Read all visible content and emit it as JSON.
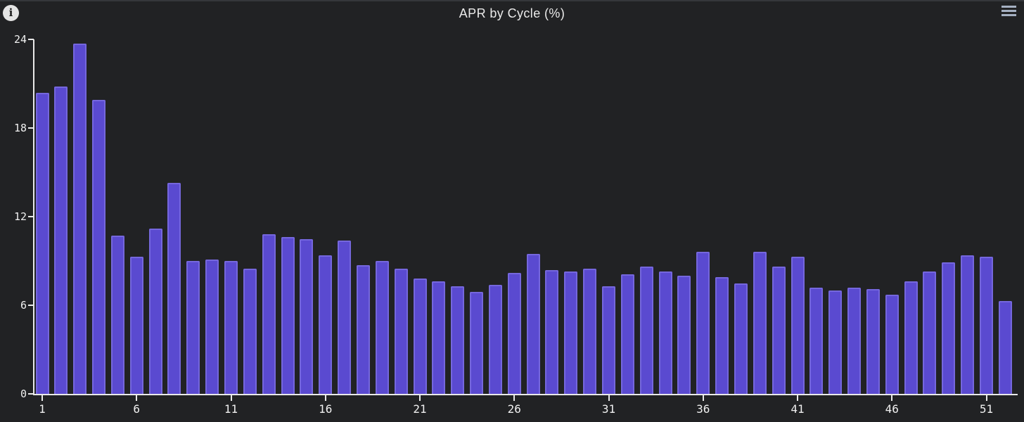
{
  "header": {
    "info_glyph": "i"
  },
  "colors": {
    "background": "#212224",
    "bar_fill": "#5a4ad0",
    "bar_border": "#7567dd",
    "axis": "#e9e9e9",
    "label": "#f0f0f0",
    "menu_icon": "#a5b0c2",
    "info_circle": "#e4e4e4"
  },
  "chart_data": {
    "type": "bar",
    "title": "APR by Cycle (%)",
    "xlabel": "",
    "ylabel": "",
    "ylim": [
      0,
      24
    ],
    "yticks": [
      0,
      6,
      12,
      18,
      24
    ],
    "xtick_labels": [
      1,
      6,
      11,
      16,
      21,
      26,
      31,
      36,
      41,
      46,
      51
    ],
    "categories": [
      1,
      2,
      3,
      4,
      5,
      6,
      7,
      8,
      9,
      10,
      11,
      12,
      13,
      14,
      15,
      16,
      17,
      18,
      19,
      20,
      21,
      22,
      23,
      24,
      25,
      26,
      27,
      28,
      29,
      30,
      31,
      32,
      33,
      34,
      35,
      36,
      37,
      38,
      39,
      40,
      41,
      42,
      43,
      44,
      45,
      46,
      47,
      48,
      49,
      50,
      51,
      52
    ],
    "values": [
      20.4,
      20.8,
      23.7,
      19.9,
      10.7,
      9.3,
      11.2,
      14.3,
      9.0,
      9.1,
      9.0,
      8.5,
      10.8,
      10.6,
      10.5,
      9.4,
      10.4,
      8.7,
      9.0,
      8.5,
      7.8,
      7.6,
      7.3,
      6.9,
      7.4,
      8.2,
      9.5,
      8.4,
      8.3,
      8.5,
      7.3,
      8.1,
      8.6,
      8.3,
      8.0,
      9.6,
      7.9,
      7.5,
      9.6,
      8.6,
      9.3,
      7.2,
      7.0,
      7.2,
      7.1,
      6.7,
      7.6,
      8.3,
      8.9,
      9.4,
      9.3,
      6.3
    ],
    "grid": false,
    "legend": "none"
  }
}
